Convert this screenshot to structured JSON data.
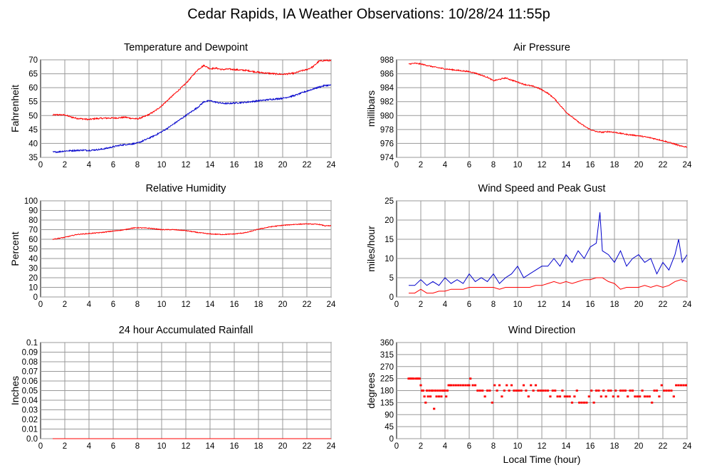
{
  "page": {
    "title": "Cedar Rapids, IA Weather Observations: 10/28/24 11:55p"
  },
  "colors": {
    "red": "#ff0000",
    "blue": "#0000cc"
  },
  "chart_data": [
    {
      "id": "temp",
      "type": "line",
      "title": "Temperature and Dewpoint",
      "xlabel": "",
      "ylabel": "Fahrenheit",
      "xlim": [
        0,
        24
      ],
      "ylim": [
        35,
        70
      ],
      "xticks": [
        2,
        4,
        6,
        8,
        10,
        12,
        14,
        16,
        18,
        20,
        22,
        24
      ],
      "yticks": [
        35,
        40,
        45,
        50,
        55,
        60,
        65,
        70
      ],
      "grid": true,
      "series": [
        {
          "color": "#ff0000",
          "noise": 0.25,
          "x": [
            1,
            1.5,
            2,
            2.5,
            3,
            3.5,
            4,
            4.5,
            5,
            5.5,
            6,
            6.5,
            7,
            7.5,
            8,
            8.5,
            9,
            9.5,
            10,
            10.5,
            11,
            11.5,
            12,
            12.5,
            13,
            13.5,
            14,
            14.5,
            15,
            15.5,
            16,
            17,
            18,
            19,
            19.5,
            20,
            21,
            21.5,
            22,
            22.5,
            23,
            23.5,
            24
          ],
          "y": [
            50.2,
            50.3,
            50.2,
            49.5,
            49,
            48.8,
            48.6,
            48.9,
            49,
            49.1,
            49.1,
            49.2,
            49.4,
            49,
            48.8,
            49.5,
            50.5,
            51.8,
            53.5,
            55.5,
            57.5,
            59.5,
            61.5,
            64,
            66.5,
            68,
            66.8,
            67,
            66.5,
            66.7,
            66.5,
            66.2,
            65.5,
            65.1,
            64.9,
            64.8,
            65.2,
            66,
            66.5,
            67.5,
            69.5,
            69.8,
            69.7
          ]
        },
        {
          "color": "#0000cc",
          "noise": 0.25,
          "x": [
            1,
            1.5,
            2,
            2.5,
            3,
            3.5,
            4,
            4.5,
            5,
            5.5,
            6,
            6.5,
            7,
            7.5,
            8,
            8.5,
            9,
            9.5,
            10,
            10.5,
            11,
            11.5,
            12,
            12.5,
            13,
            13.5,
            14,
            14.5,
            15,
            15.5,
            16,
            17,
            18,
            19,
            20,
            21,
            21.5,
            22,
            22.5,
            23,
            23.5,
            24
          ],
          "y": [
            36.9,
            37,
            37.3,
            37.4,
            37.5,
            37.6,
            37.5,
            37.7,
            37.9,
            38.3,
            38.8,
            39.3,
            39.6,
            39.8,
            40.1,
            41,
            42,
            43,
            44.2,
            45.5,
            47,
            48.5,
            50,
            51.5,
            53,
            55,
            55.3,
            54.8,
            54.4,
            54.3,
            54.5,
            54.8,
            55.3,
            55.8,
            56.2,
            57.2,
            58,
            58.8,
            59.5,
            60.2,
            60.8,
            60.9
          ]
        }
      ]
    },
    {
      "id": "pressure",
      "type": "line",
      "title": "Air Pressure",
      "xlabel": "",
      "ylabel": "millibars",
      "xlim": [
        0,
        24
      ],
      "ylim": [
        974,
        988
      ],
      "xticks": [
        2,
        4,
        6,
        8,
        10,
        12,
        14,
        16,
        18,
        20,
        22,
        24
      ],
      "yticks": [
        974,
        976,
        978,
        980,
        982,
        984,
        986,
        988
      ],
      "grid": true,
      "series": [
        {
          "color": "#ff0000",
          "noise": 0.08,
          "x": [
            1,
            1.5,
            2,
            2.5,
            3,
            4,
            5,
            6,
            6.5,
            7,
            7.5,
            8,
            8.5,
            9,
            9.5,
            10,
            10.5,
            11,
            11.5,
            12,
            12.5,
            13,
            13.5,
            14,
            14.5,
            15,
            15.5,
            16,
            16.5,
            17,
            17.5,
            18,
            19,
            20,
            21,
            22,
            23,
            23.5,
            24
          ],
          "y": [
            987.4,
            987.5,
            987.4,
            987.2,
            987,
            986.7,
            986.5,
            986.3,
            986.1,
            985.8,
            985.5,
            985,
            985.2,
            985.4,
            985.1,
            984.8,
            984.5,
            984.3,
            984.1,
            983.7,
            983.2,
            982.5,
            981.5,
            980.5,
            979.8,
            979.1,
            978.5,
            978,
            977.7,
            977.6,
            977.7,
            977.6,
            977.3,
            977.1,
            976.8,
            976.4,
            975.9,
            975.6,
            975.5
          ]
        }
      ]
    },
    {
      "id": "humidity",
      "type": "line",
      "title": "Relative Humidity",
      "xlabel": "",
      "ylabel": "Percent",
      "xlim": [
        0,
        24
      ],
      "ylim": [
        0,
        100
      ],
      "xticks": [
        2,
        4,
        6,
        8,
        10,
        12,
        14,
        16,
        18,
        20,
        22,
        24
      ],
      "yticks": [
        0,
        10,
        20,
        30,
        40,
        50,
        60,
        70,
        80,
        90,
        100
      ],
      "grid": true,
      "series": [
        {
          "color": "#ff0000",
          "noise": 0.4,
          "x": [
            1,
            2,
            3,
            4,
            5,
            6,
            7,
            7.5,
            8,
            9,
            10,
            11,
            12,
            13,
            14,
            15,
            16,
            17,
            18,
            19,
            20,
            21,
            22,
            23,
            23.5,
            24
          ],
          "y": [
            60,
            62,
            65,
            66,
            67,
            68.5,
            70,
            71.5,
            72,
            71.5,
            70,
            70,
            69,
            67,
            65.5,
            65,
            65.5,
            67,
            70.5,
            73,
            74.5,
            75.5,
            76,
            75.5,
            74,
            74
          ]
        }
      ]
    },
    {
      "id": "wind",
      "type": "line",
      "title": "Wind Speed and Peak Gust",
      "xlabel": "",
      "ylabel": "miles/hour",
      "xlim": [
        0,
        24
      ],
      "ylim": [
        0,
        25
      ],
      "xticks": [
        2,
        4,
        6,
        8,
        10,
        12,
        14,
        16,
        18,
        20,
        22,
        24
      ],
      "yticks": [
        0,
        5,
        10,
        15,
        20,
        25
      ],
      "grid": true,
      "series": [
        {
          "color": "#0000cc",
          "noise": 0,
          "x": [
            1,
            1.5,
            2,
            2.5,
            3,
            3.5,
            4,
            4.5,
            5,
            5.5,
            6,
            6.5,
            7,
            7.5,
            8,
            8.5,
            9,
            9.5,
            10,
            10.5,
            11,
            11.5,
            12,
            12.5,
            13,
            13.5,
            14,
            14.5,
            15,
            15.5,
            16,
            16.5,
            16.8,
            17,
            17.5,
            18,
            18.5,
            19,
            19.5,
            20,
            20.5,
            21,
            21.5,
            22,
            22.5,
            23,
            23.3,
            23.6,
            24
          ],
          "y": [
            3,
            3,
            4.5,
            3,
            4,
            3,
            5,
            3.5,
            4.5,
            3.5,
            6,
            4,
            5,
            4,
            6,
            3.5,
            5,
            6,
            8,
            5,
            6,
            7,
            8,
            8,
            10,
            8,
            11,
            9,
            12,
            10,
            13,
            14,
            22,
            12,
            11,
            9,
            12,
            8,
            10,
            11,
            9,
            10,
            6,
            9,
            7,
            11,
            15,
            9,
            11
          ]
        },
        {
          "color": "#ff0000",
          "noise": 0,
          "x": [
            1,
            1.5,
            2,
            2.5,
            3,
            3.5,
            4,
            4.5,
            5,
            5.5,
            6,
            6.5,
            7,
            7.5,
            8,
            8.5,
            9,
            9.5,
            10,
            10.5,
            11,
            11.5,
            12,
            12.5,
            13,
            13.5,
            14,
            14.5,
            15,
            15.5,
            16,
            16.5,
            17,
            17.5,
            18,
            18.5,
            19,
            19.5,
            20,
            20.5,
            21,
            21.5,
            22,
            22.5,
            23,
            23.5,
            24
          ],
          "y": [
            1,
            1,
            2,
            1,
            1,
            1.5,
            1.5,
            2,
            2,
            2,
            2.5,
            2.5,
            2.5,
            2.5,
            2.5,
            2,
            2.5,
            2.5,
            2.5,
            2.5,
            2.5,
            3,
            3,
            3.5,
            4,
            3.5,
            4,
            3.5,
            4,
            4.5,
            4.5,
            5,
            5,
            4,
            3.5,
            2,
            2.5,
            2.5,
            2.5,
            3,
            2.5,
            3,
            2.5,
            3,
            4,
            4.5,
            4
          ]
        }
      ]
    },
    {
      "id": "rain",
      "type": "line",
      "title": "24 hour Accumulated Rainfall",
      "xlabel": "",
      "ylabel": "Inches",
      "xlim": [
        0,
        24
      ],
      "ylim": [
        0,
        0.1
      ],
      "xticks": [
        2,
        4,
        6,
        8,
        10,
        12,
        14,
        16,
        18,
        20,
        22,
        24
      ],
      "yticks": [
        0.0,
        0.01,
        0.02,
        0.03,
        0.04,
        0.05,
        0.06,
        0.07,
        0.08,
        0.09,
        0.1
      ],
      "ytick_labels": [
        "0.0",
        "0.01",
        "0.02",
        "0.03",
        "0.04",
        "0.05",
        "0.06",
        "0.07",
        "0.08",
        "0.09",
        "0.1"
      ],
      "grid": true,
      "series": [
        {
          "color": "#ff0000",
          "noise": 0,
          "x": [
            1,
            24
          ],
          "y": [
            0,
            0
          ]
        }
      ]
    },
    {
      "id": "direction",
      "type": "scatter",
      "title": "Wind Direction",
      "xlabel": "Local Time (hour)",
      "ylabel": "degrees",
      "xlim": [
        0,
        24
      ],
      "ylim": [
        0,
        360
      ],
      "xticks": [
        2,
        4,
        6,
        8,
        10,
        12,
        14,
        16,
        18,
        20,
        22,
        24
      ],
      "yticks": [
        0,
        45,
        90,
        135,
        180,
        225,
        270,
        315,
        360
      ],
      "grid": true,
      "series": [
        {
          "color": "#ff0000",
          "x": [
            1,
            1.1,
            1.2,
            1.3,
            1.4,
            1.6,
            1.7,
            1.8,
            1.9,
            2.0,
            2.1,
            2.2,
            2.3,
            2.4,
            2.5,
            2.6,
            2.7,
            2.8,
            2.9,
            3.0,
            3.1,
            3.2,
            3.3,
            3.4,
            3.5,
            3.6,
            3.7,
            3.8,
            3.9,
            4.0,
            4.1,
            4.2,
            4.3,
            4.4,
            4.5,
            4.7,
            4.9,
            5.1,
            5.3,
            5.5,
            5.7,
            5.9,
            6.0,
            6.1,
            6.3,
            6.5,
            6.7,
            6.9,
            7.1,
            7.3,
            7.5,
            7.7,
            7.9,
            8.1,
            8.3,
            8.5,
            8.7,
            8.9,
            9.1,
            9.3,
            9.5,
            9.7,
            9.9,
            10.1,
            10.3,
            10.5,
            10.7,
            10.9,
            11.1,
            11.3,
            11.5,
            11.7,
            11.9,
            12.1,
            12.3,
            12.5,
            12.7,
            12.9,
            13.1,
            13.3,
            13.5,
            13.7,
            13.9,
            14.1,
            14.3,
            14.5,
            14.7,
            14.9,
            15.1,
            15.3,
            15.5,
            15.7,
            15.9,
            16.1,
            16.3,
            16.5,
            16.7,
            16.9,
            17.1,
            17.3,
            17.5,
            17.7,
            17.9,
            18.1,
            18.3,
            18.5,
            18.7,
            18.9,
            19.1,
            19.3,
            19.5,
            19.7,
            19.9,
            20.1,
            20.3,
            20.5,
            20.7,
            20.9,
            21.1,
            21.3,
            21.5,
            21.7,
            21.9,
            22.1,
            22.3,
            22.5,
            22.7,
            22.9,
            23.1,
            23.3,
            23.5,
            23.7,
            23.9,
            24.0
          ],
          "y": [
            225,
            225,
            225,
            225,
            225,
            225,
            225,
            225,
            225,
            200,
            180,
            180,
            158,
            135,
            180,
            158,
            180,
            158,
            180,
            180,
            112,
            180,
            158,
            180,
            158,
            180,
            158,
            180,
            180,
            180,
            158,
            180,
            200,
            200,
            200,
            200,
            200,
            200,
            200,
            200,
            200,
            200,
            200,
            225,
            200,
            200,
            180,
            180,
            180,
            158,
            180,
            180,
            135,
            200,
            180,
            200,
            158,
            180,
            200,
            180,
            200,
            180,
            180,
            180,
            180,
            200,
            180,
            158,
            200,
            180,
            200,
            180,
            180,
            180,
            180,
            180,
            158,
            180,
            180,
            158,
            158,
            180,
            158,
            158,
            158,
            135,
            158,
            180,
            135,
            135,
            135,
            135,
            158,
            180,
            135,
            180,
            180,
            158,
            180,
            158,
            180,
            180,
            158,
            180,
            158,
            180,
            180,
            180,
            158,
            180,
            180,
            158,
            158,
            158,
            180,
            158,
            158,
            158,
            135,
            180,
            180,
            158,
            200,
            180,
            180,
            180,
            180,
            158,
            200,
            200,
            200,
            200,
            200,
            200
          ]
        }
      ]
    }
  ]
}
